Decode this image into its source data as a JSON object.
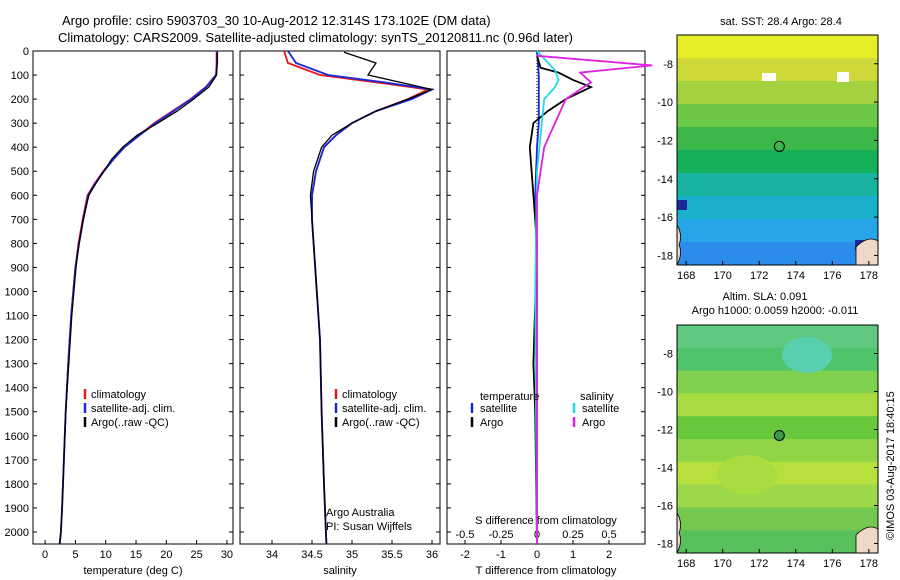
{
  "header": {
    "line1": "Argo profile: csiro 5903703_30 10-Aug-2012 12.314S 173.102E (DM data)",
    "line2": "Climatology: CARS2009. Satellite-adjusted climatology: synTS_20120811.nc (0.96d later)"
  },
  "colors": {
    "climatology": "#e8161b",
    "satellite": "#1a28d8",
    "argo": "#000000",
    "sat_salinity": "#24d8e8",
    "argo_salinity": "#e020e0"
  },
  "chart_data": [
    {
      "type": "line",
      "xlabel": "temperature (deg C)",
      "ylabel": "",
      "xlim": [
        -2,
        31
      ],
      "ylim": [
        2050,
        0
      ],
      "xticks": [
        "0",
        "5",
        "10",
        "15",
        "20",
        "25",
        "30"
      ],
      "yticks": [
        "0",
        "100",
        "200",
        "300",
        "400",
        "500",
        "600",
        "700",
        "800",
        "900",
        "1000",
        "1100",
        "1200",
        "1300",
        "1400",
        "1500",
        "1600",
        "1700",
        "1800",
        "1900",
        "2000"
      ],
      "legend": [
        "climatology",
        "satellite-adj. clim.",
        "Argo(..raw -QC)"
      ],
      "series": [
        {
          "name": "climatology",
          "x": [
            28.3,
            28.3,
            28.2,
            26.5,
            24.0,
            21.0,
            18.0,
            15.5,
            13.0,
            11.2,
            9.6,
            8.2,
            7.0,
            6.2,
            5.5,
            5.0,
            4.3,
            3.8,
            3.4,
            3.1,
            2.8,
            2.6,
            2.4
          ],
          "y": [
            0,
            50,
            100,
            150,
            200,
            250,
            300,
            350,
            400,
            450,
            500,
            550,
            600,
            700,
            800,
            900,
            1100,
            1300,
            1500,
            1700,
            1900,
            2000,
            2050
          ]
        },
        {
          "name": "satellite-adj. clim.",
          "x": [
            28.4,
            28.4,
            28.2,
            26.6,
            24.1,
            21.2,
            18.2,
            15.6,
            13.1,
            11.3,
            9.7,
            8.3,
            7.1,
            6.3,
            5.6,
            5.0,
            4.3,
            3.8,
            3.4,
            3.1,
            2.8,
            2.6,
            2.4
          ],
          "y": [
            0,
            50,
            100,
            150,
            200,
            250,
            300,
            350,
            400,
            450,
            500,
            550,
            600,
            700,
            800,
            900,
            1100,
            1300,
            1500,
            1700,
            1900,
            2000,
            2050
          ]
        },
        {
          "name": "Argo(..raw -QC)",
          "x": [
            28.4,
            28.4,
            28.3,
            27.0,
            24.5,
            21.8,
            18.6,
            15.2,
            12.8,
            11.0,
            9.7,
            8.4,
            7.2,
            6.3,
            5.6,
            5.1,
            4.4,
            3.9,
            3.4,
            3.1,
            2.8,
            2.6,
            2.4
          ],
          "y": [
            5,
            50,
            100,
            150,
            200,
            250,
            300,
            350,
            400,
            450,
            500,
            550,
            600,
            700,
            800,
            900,
            1100,
            1300,
            1500,
            1700,
            1900,
            2000,
            2050
          ]
        }
      ]
    },
    {
      "type": "line",
      "xlabel": "salinity",
      "xlim": [
        33.6,
        36.1
      ],
      "ylim": [
        2050,
        0
      ],
      "xticks": [
        "34",
        "34.5",
        "35",
        "35.5",
        "36"
      ],
      "legend": [
        "climatology",
        "satellite-adj. clim.",
        "Argo(..raw -QC)"
      ],
      "annotation": [
        "Argo Australia",
        "PI: Susan Wijffels"
      ],
      "series": [
        {
          "name": "climatology",
          "x": [
            34.15,
            34.2,
            34.6,
            35.3,
            35.95,
            35.7,
            35.3,
            35.0,
            34.8,
            34.65,
            34.55,
            34.5,
            34.5,
            34.52,
            34.56,
            34.6,
            34.62,
            34.65,
            34.68
          ],
          "y": [
            0,
            50,
            100,
            130,
            160,
            200,
            250,
            300,
            350,
            400,
            500,
            600,
            700,
            800,
            1000,
            1200,
            1500,
            1800,
            2050
          ]
        },
        {
          "name": "satellite-adj. clim.",
          "x": [
            34.2,
            34.3,
            34.7,
            35.4,
            36.0,
            35.75,
            35.3,
            35.0,
            34.8,
            34.65,
            34.55,
            34.5,
            34.5,
            34.52,
            34.56,
            34.6,
            34.62,
            34.65,
            34.68
          ],
          "y": [
            0,
            50,
            100,
            130,
            160,
            200,
            250,
            300,
            350,
            400,
            500,
            600,
            700,
            800,
            1000,
            1200,
            1500,
            1800,
            2050
          ]
        },
        {
          "name": "Argo(..raw -QC)",
          "x": [
            34.9,
            35.3,
            35.2,
            35.6,
            36.0,
            35.7,
            35.3,
            35.0,
            34.75,
            34.62,
            34.52,
            34.48,
            34.5,
            34.52,
            34.56,
            34.6,
            34.62,
            34.65,
            34.68
          ],
          "y": [
            5,
            50,
            100,
            130,
            160,
            200,
            250,
            300,
            350,
            400,
            500,
            600,
            700,
            800,
            1000,
            1200,
            1500,
            1800,
            2050
          ]
        }
      ]
    },
    {
      "type": "line",
      "xlabel": "T difference from climatology",
      "xlabel_top": "S difference from climatology",
      "xlim": [
        -2.5,
        3.0
      ],
      "ylim": [
        2050,
        0
      ],
      "xticks": [
        "-2",
        "-1",
        "0",
        "1",
        "2"
      ],
      "xticks_s": [
        "-0.5",
        "-0.25",
        "0",
        "0.25",
        "0.5"
      ],
      "legend_headers": [
        "temperature",
        "salinity"
      ],
      "legend": [
        "satellite",
        "Argo",
        "satellite",
        "Argo"
      ],
      "series": [
        {
          "name": "satellite",
          "quantity": "temperature",
          "x": [
            0,
            0.05,
            0.05,
            0.05,
            0.0,
            -0.05,
            0.0,
            0.0,
            0.0
          ],
          "y": [
            0,
            100,
            200,
            300,
            400,
            600,
            1000,
            1500,
            2050
          ]
        },
        {
          "name": "Argo",
          "quantity": "temperature",
          "x": [
            0,
            0.1,
            0.6,
            1.0,
            1.5,
            0.8,
            0.3,
            -0.1,
            -0.2,
            -0.1,
            0.0,
            -0.1,
            -0.05,
            0.0
          ],
          "y": [
            20,
            70,
            90,
            120,
            150,
            200,
            250,
            300,
            400,
            600,
            800,
            1300,
            1500,
            2050
          ]
        },
        {
          "name": "satellite",
          "quantity": "salinity",
          "x": [
            0,
            0.5,
            0.6,
            0.5,
            0.2,
            0.0,
            -0.05,
            0.0
          ],
          "y": [
            0,
            80,
            120,
            150,
            200,
            500,
            1000,
            2050
          ]
        },
        {
          "name": "Argo",
          "quantity": "salinity",
          "x": [
            0,
            3.2,
            1.2,
            1.5,
            0.8,
            0.5,
            0.2,
            0.0,
            0.0
          ],
          "y": [
            20,
            60,
            90,
            130,
            200,
            300,
            400,
            600,
            2050
          ]
        }
      ]
    },
    {
      "type": "heatmap",
      "title": "sat. SST: 28.4 Argo: 28.4",
      "xticks": [
        "168",
        "170",
        "172",
        "174",
        "176",
        "178"
      ],
      "yticks": [
        "-8",
        "-10",
        "-12",
        "-14",
        "-16",
        "-18"
      ],
      "xlim": [
        167.5,
        178.5
      ],
      "ylim": [
        -18.5,
        -6.5
      ]
    },
    {
      "type": "heatmap",
      "title": "Altim. SLA: 0.091",
      "subtitle": "Argo h1000: 0.0059 h2000: -0.011",
      "xticks": [
        "168",
        "170",
        "172",
        "174",
        "176",
        "178"
      ],
      "yticks": [
        "-8",
        "-10",
        "-12",
        "-14",
        "-16",
        "-18"
      ],
      "xlim": [
        167.5,
        178.5
      ],
      "ylim": [
        -18.5,
        -6.5
      ]
    }
  ],
  "footer_stamp": "©IMOS 03-Aug-2017 18:40:15"
}
